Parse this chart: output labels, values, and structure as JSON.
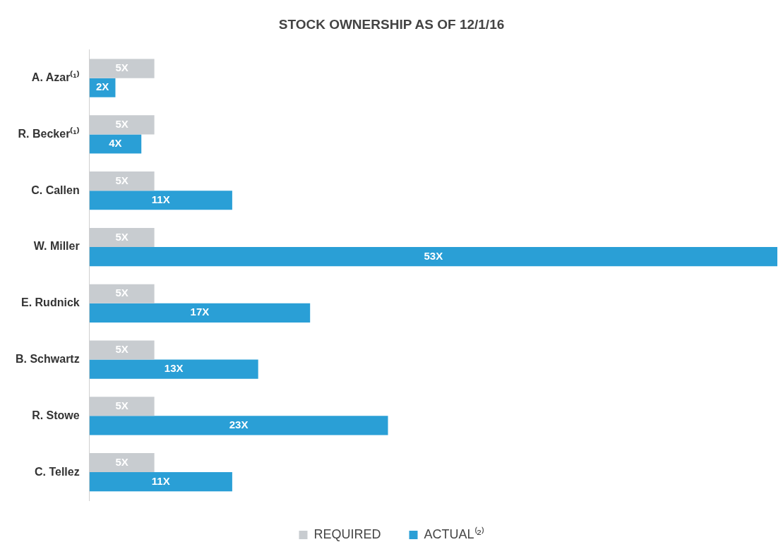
{
  "chart_data": {
    "type": "bar",
    "orientation": "horizontal",
    "title": "STOCK OWNERSHIP AS OF 12/1/16",
    "categories": [
      "A. Azar⁽¹⁾",
      "R. Becker⁽¹⁾",
      "C. Callen",
      "W. Miller",
      "E. Rudnick",
      "B. Schwartz",
      "R. Stowe",
      "C. Tellez"
    ],
    "series": [
      {
        "name": "REQUIRED",
        "color": "#c8ccd0",
        "values": [
          5,
          5,
          5,
          5,
          5,
          5,
          5,
          5
        ],
        "value_labels": [
          "5X",
          "5X",
          "5X",
          "5X",
          "5X",
          "5X",
          "5X",
          "5X"
        ]
      },
      {
        "name": "ACTUAL⁽²⁾",
        "color": "#2a9fd6",
        "values": [
          2,
          4,
          11,
          53,
          17,
          13,
          23,
          11
        ],
        "value_labels": [
          "2X",
          "4X",
          "11X",
          "53X",
          "17X",
          "13X",
          "23X",
          "11X"
        ]
      }
    ],
    "legend": "bottom",
    "grid": false,
    "tick_labels": "y"
  }
}
